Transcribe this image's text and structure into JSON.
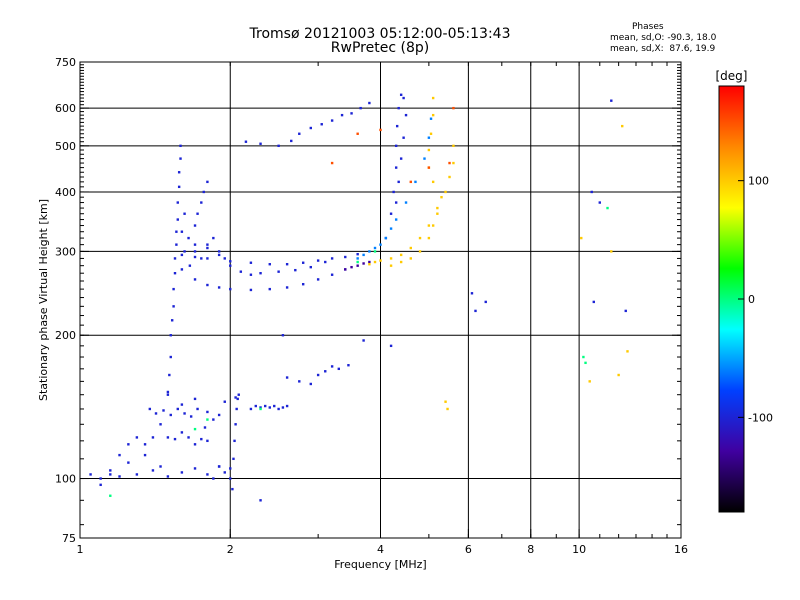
{
  "chart_data": {
    "type": "scatter",
    "title": "Tromsø 20121003 05:12:00-05:13:43",
    "subtitle": "RwPretec (8p)",
    "xlabel": "Frequency [MHz]",
    "ylabel": "Stationary phase Virtual Height [km]",
    "x_scale": "log",
    "y_scale": "log",
    "xlim": [
      1,
      16
    ],
    "ylim": [
      75,
      750
    ],
    "x_ticks": [
      1,
      2,
      4,
      6,
      8,
      10,
      16
    ],
    "y_ticks": [
      75,
      100,
      200,
      300,
      400,
      500,
      600,
      750
    ],
    "x_gridlines": [
      2,
      4,
      6,
      8,
      10
    ],
    "y_gridlines": [
      100,
      200,
      300,
      400,
      500,
      600
    ],
    "grid": true,
    "phases": {
      "title": "Phases",
      "line_o": "mean, sd,O: -90.3, 18.0",
      "line_x": "mean, sd,X:  87.6, 19.9"
    },
    "colorbar": {
      "label": "[deg]",
      "range": [
        -180,
        180
      ],
      "ticks": [
        100,
        0,
        -100
      ],
      "colors": [
        "#ff0000",
        "#ff8800",
        "#ffff00",
        "#00ff00",
        "#00ffff",
        "#0040ff",
        "#4000a0",
        "#000000"
      ]
    },
    "traces": [
      {
        "phase": -100,
        "points": [
          [
            1.05,
            102
          ],
          [
            1.1,
            100
          ],
          [
            1.15,
            104
          ],
          [
            1.2,
            101
          ],
          [
            1.25,
            108
          ],
          [
            1.3,
            102
          ],
          [
            1.35,
            112
          ],
          [
            1.4,
            104
          ],
          [
            1.45,
            106
          ],
          [
            1.5,
            101
          ],
          [
            1.6,
            103
          ],
          [
            1.7,
            105
          ],
          [
            1.8,
            102
          ],
          [
            1.9,
            106
          ],
          [
            2.0,
            100
          ]
        ]
      },
      {
        "phase": -100,
        "points": [
          [
            1.1,
            97
          ],
          [
            1.15,
            102
          ],
          [
            1.2,
            112
          ],
          [
            1.25,
            118
          ],
          [
            1.3,
            122
          ],
          [
            1.35,
            118
          ],
          [
            1.4,
            122
          ],
          [
            1.45,
            130
          ],
          [
            1.5,
            122
          ],
          [
            1.55,
            121
          ],
          [
            1.6,
            125
          ],
          [
            1.65,
            122
          ],
          [
            1.7,
            118
          ],
          [
            1.75,
            121
          ],
          [
            1.8,
            120
          ]
        ]
      },
      {
        "phase": -100,
        "points": [
          [
            1.38,
            140
          ],
          [
            1.42,
            137
          ],
          [
            1.47,
            139
          ],
          [
            1.52,
            136
          ],
          [
            1.57,
            140
          ],
          [
            1.62,
            137
          ],
          [
            1.67,
            135
          ],
          [
            1.72,
            140
          ],
          [
            1.8,
            138
          ],
          [
            1.9,
            136
          ]
        ]
      },
      {
        "phase": -100,
        "points": [
          [
            1.5,
            150
          ],
          [
            1.51,
            165
          ],
          [
            1.52,
            180
          ],
          [
            1.52,
            200
          ],
          [
            1.53,
            215
          ],
          [
            1.54,
            230
          ],
          [
            1.54,
            250
          ],
          [
            1.55,
            270
          ],
          [
            1.55,
            290
          ],
          [
            1.56,
            310
          ],
          [
            1.56,
            330
          ],
          [
            1.57,
            350
          ],
          [
            1.57,
            380
          ],
          [
            1.58,
            410
          ],
          [
            1.58,
            440
          ],
          [
            1.59,
            470
          ],
          [
            1.59,
            500
          ]
        ]
      },
      {
        "phase": -100,
        "points": [
          [
            1.62,
            300
          ],
          [
            1.65,
            320
          ],
          [
            1.7,
            340
          ],
          [
            1.72,
            360
          ],
          [
            1.75,
            380
          ],
          [
            1.77,
            400
          ],
          [
            1.8,
            420
          ],
          [
            1.62,
            360
          ],
          [
            1.66,
            280
          ],
          [
            1.7,
            300
          ],
          [
            1.75,
            290
          ],
          [
            1.8,
            310
          ],
          [
            1.85,
            320
          ],
          [
            1.9,
            300
          ],
          [
            1.95,
            290
          ]
        ]
      },
      {
        "phase": -100,
        "points": [
          [
            1.6,
            275
          ],
          [
            1.7,
            262
          ],
          [
            1.8,
            255
          ],
          [
            1.9,
            252
          ],
          [
            2.0,
            250
          ],
          [
            2.2,
            249
          ],
          [
            2.4,
            250
          ],
          [
            2.6,
            252
          ],
          [
            2.8,
            256
          ],
          [
            3.0,
            262
          ],
          [
            3.2,
            268
          ],
          [
            3.4,
            275
          ]
        ]
      },
      {
        "phase": -100,
        "points": [
          [
            1.6,
            295
          ],
          [
            1.7,
            292
          ],
          [
            1.8,
            290
          ],
          [
            2.0,
            286
          ],
          [
            2.2,
            284
          ],
          [
            2.4,
            282
          ],
          [
            2.6,
            282
          ],
          [
            2.8,
            284
          ],
          [
            3.0,
            287
          ],
          [
            3.2,
            290
          ],
          [
            3.4,
            292
          ],
          [
            3.6,
            296
          ]
        ]
      },
      {
        "phase": -100,
        "points": [
          [
            1.6,
            330
          ],
          [
            1.7,
            310
          ],
          [
            1.8,
            305
          ],
          [
            1.9,
            295
          ],
          [
            2.0,
            280
          ],
          [
            2.1,
            272
          ],
          [
            2.2,
            268
          ],
          [
            2.3,
            270
          ],
          [
            2.5,
            272
          ],
          [
            2.7,
            274
          ],
          [
            2.9,
            278
          ],
          [
            3.1,
            285
          ]
        ]
      },
      {
        "phase": -100,
        "points": [
          [
            2.15,
            510
          ],
          [
            2.3,
            505
          ],
          [
            2.5,
            500
          ],
          [
            2.65,
            512
          ],
          [
            2.75,
            530
          ],
          [
            2.9,
            545
          ],
          [
            3.05,
            555
          ],
          [
            3.2,
            565
          ],
          [
            3.35,
            580
          ],
          [
            3.5,
            585
          ],
          [
            3.65,
            600
          ],
          [
            3.8,
            615
          ]
        ]
      },
      {
        "phase": -100,
        "points": [
          [
            4.1,
            320
          ],
          [
            4.2,
            360
          ],
          [
            4.25,
            400
          ],
          [
            4.3,
            450
          ],
          [
            4.3,
            500
          ],
          [
            4.32,
            550
          ],
          [
            4.35,
            600
          ],
          [
            4.4,
            640
          ],
          [
            4.45,
            630
          ],
          [
            4.5,
            580
          ],
          [
            4.45,
            520
          ],
          [
            4.4,
            470
          ],
          [
            4.35,
            420
          ],
          [
            4.3,
            380
          ]
        ]
      },
      {
        "phase": -100,
        "points": [
          [
            1.85,
            100
          ],
          [
            1.9,
            106
          ],
          [
            1.95,
            103
          ],
          [
            2.0,
            105
          ],
          [
            2.02,
            95
          ],
          [
            2.03,
            110
          ],
          [
            2.04,
            120
          ],
          [
            2.05,
            130
          ],
          [
            2.06,
            140
          ],
          [
            2.07,
            147
          ],
          [
            2.08,
            150
          ]
        ]
      },
      {
        "phase": -100,
        "points": [
          [
            2.2,
            140
          ],
          [
            2.25,
            142
          ],
          [
            2.3,
            141
          ],
          [
            2.35,
            142
          ],
          [
            2.4,
            141
          ],
          [
            2.45,
            142
          ],
          [
            2.5,
            140
          ],
          [
            2.55,
            141
          ],
          [
            2.6,
            142
          ]
        ]
      },
      {
        "phase": -100,
        "points": [
          [
            2.6,
            163
          ],
          [
            2.75,
            160
          ],
          [
            2.9,
            158
          ],
          [
            3.0,
            165
          ],
          [
            3.1,
            168
          ],
          [
            3.2,
            172
          ],
          [
            3.3,
            170
          ],
          [
            3.45,
            173
          ],
          [
            3.7,
            195
          ]
        ]
      },
      {
        "phase": -130,
        "points": [
          [
            3.4,
            275
          ],
          [
            3.5,
            278
          ],
          [
            3.6,
            280
          ],
          [
            3.7,
            283
          ],
          [
            3.8,
            285
          ]
        ]
      },
      {
        "phase": -60,
        "points": [
          [
            3.6,
            290
          ],
          [
            3.7,
            295
          ],
          [
            3.8,
            300
          ],
          [
            3.9,
            305
          ],
          [
            4.0,
            310
          ],
          [
            4.1,
            320
          ],
          [
            4.2,
            335
          ],
          [
            4.3,
            350
          ],
          [
            4.5,
            380
          ],
          [
            4.7,
            420
          ],
          [
            4.9,
            470
          ],
          [
            5.0,
            520
          ],
          [
            5.05,
            570
          ]
        ]
      },
      {
        "phase": 100,
        "points": [
          [
            3.8,
            282
          ],
          [
            3.9,
            285
          ],
          [
            4.0,
            287
          ],
          [
            4.2,
            290
          ],
          [
            4.4,
            295
          ],
          [
            4.6,
            305
          ],
          [
            4.8,
            320
          ],
          [
            5.0,
            340
          ],
          [
            5.2,
            370
          ],
          [
            5.4,
            400
          ],
          [
            5.5,
            430
          ],
          [
            5.6,
            460
          ],
          [
            5.6,
            500
          ]
        ]
      },
      {
        "phase": 100,
        "points": [
          [
            4.2,
            280
          ],
          [
            4.4,
            285
          ],
          [
            4.6,
            290
          ],
          [
            4.8,
            300
          ],
          [
            5.0,
            320
          ],
          [
            5.1,
            340
          ],
          [
            5.2,
            360
          ],
          [
            5.3,
            390
          ],
          [
            5.1,
            420
          ],
          [
            5.0,
            450
          ],
          [
            5.0,
            490
          ],
          [
            5.05,
            530
          ],
          [
            5.1,
            580
          ],
          [
            5.1,
            630
          ]
        ]
      },
      {
        "phase": -100,
        "points": [
          [
            1.5,
            152
          ],
          [
            1.6,
            143
          ],
          [
            1.7,
            147
          ],
          [
            1.78,
            128
          ],
          [
            1.85,
            133
          ],
          [
            1.95,
            145
          ],
          [
            2.05,
            148
          ],
          [
            2.3,
            90
          ],
          [
            2.55,
            200
          ],
          [
            4.2,
            190
          ],
          [
            6.1,
            245
          ],
          [
            6.2,
            225
          ],
          [
            6.5,
            235
          ],
          [
            10.6,
            400
          ],
          [
            11.0,
            380
          ],
          [
            10.7,
            235
          ],
          [
            11.6,
            622
          ],
          [
            12.4,
            225
          ]
        ]
      },
      {
        "phase": 100,
        "points": [
          [
            5.4,
            145
          ],
          [
            5.45,
            140
          ],
          [
            10.1,
            320
          ],
          [
            10.5,
            160
          ],
          [
            12.2,
            550
          ],
          [
            12.5,
            185
          ],
          [
            12.0,
            165
          ],
          [
            11.6,
            300
          ]
        ]
      },
      {
        "phase": 0,
        "points": [
          [
            1.15,
            92
          ],
          [
            1.7,
            127
          ],
          [
            1.8,
            133
          ],
          [
            2.3,
            140
          ],
          [
            3.6,
            285
          ],
          [
            3.9,
            300
          ],
          [
            10.2,
            180
          ],
          [
            10.3,
            175
          ],
          [
            11.4,
            370
          ]
        ]
      },
      {
        "phase": 150,
        "points": [
          [
            3.2,
            460
          ],
          [
            3.6,
            530
          ],
          [
            4.0,
            540
          ],
          [
            4.6,
            420
          ],
          [
            5.0,
            450
          ],
          [
            5.5,
            460
          ],
          [
            5.6,
            600
          ]
        ]
      }
    ]
  }
}
